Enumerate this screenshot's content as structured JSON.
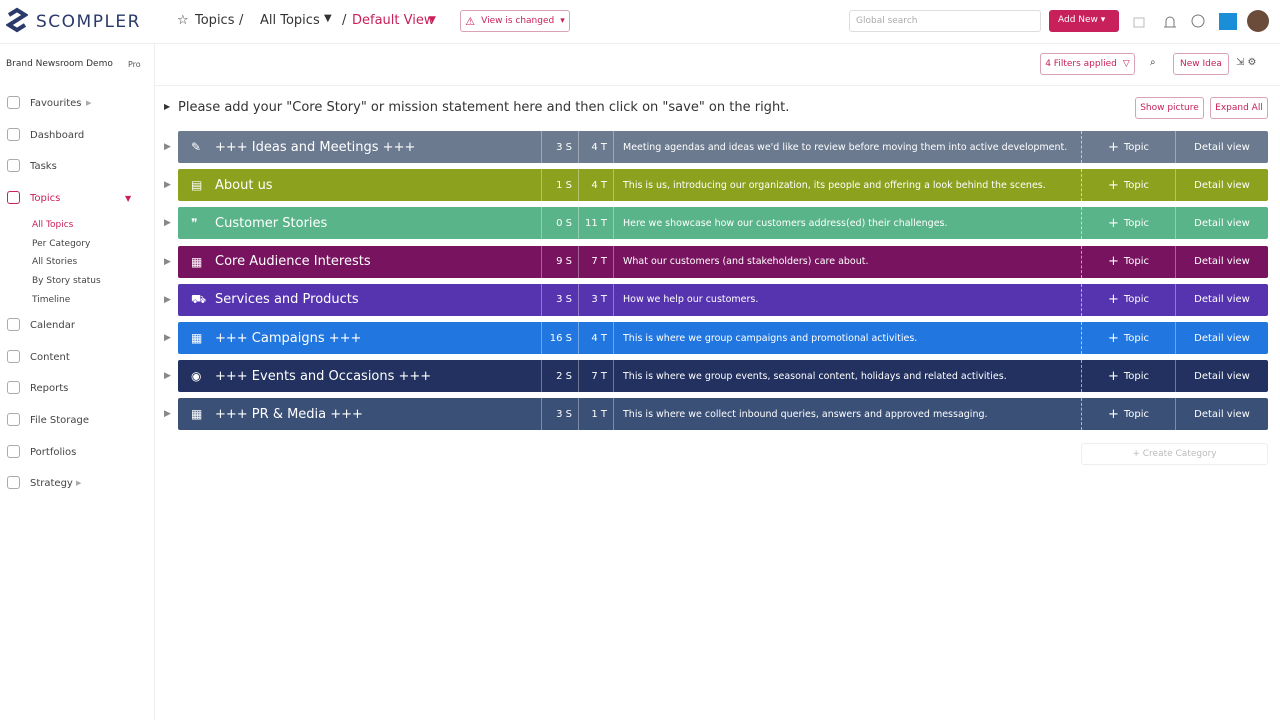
{
  "header": {
    "logo": "SCOMPLER",
    "breadcrumb": [
      "Topics",
      "All Topics",
      "Default View"
    ],
    "view_changed": "View is changed",
    "search_placeholder": "Global search",
    "add_new": "Add New"
  },
  "sidebar": {
    "workspace": "Brand Newsroom Demo",
    "plan": "Pro",
    "nav": [
      {
        "label": "Favourites"
      },
      {
        "label": "Dashboard"
      },
      {
        "label": "Tasks"
      },
      {
        "label": "Topics",
        "active": true,
        "sub": [
          "All Topics",
          "Per Category",
          "All Stories",
          "By Story status",
          "Timeline"
        ]
      },
      {
        "label": "Calendar"
      },
      {
        "label": "Content"
      },
      {
        "label": "Reports"
      },
      {
        "label": "File Storage"
      },
      {
        "label": "Portfolios"
      },
      {
        "label": "Strategy"
      }
    ]
  },
  "toolbar": {
    "filters": "4 Filters applied",
    "new_idea": "New Idea"
  },
  "core_story": "Please add your \"Core Story\" or mission statement here and then click on \"save\" on the right.",
  "show_picture": "Show picture",
  "expand_all": "Expand All",
  "categories": [
    {
      "name": "+++ Ideas and Meetings +++",
      "stories": "3 S",
      "topics": "4 T",
      "description": "Meeting agendas and ideas we'd like to review before moving them into active development.",
      "color": "#6b7a8f"
    },
    {
      "name": "About us",
      "stories": "1 S",
      "topics": "4 T",
      "description": "This is us, introducing our organization, its people and offering a look behind the scenes.",
      "color": "#8ca11d"
    },
    {
      "name": "Customer Stories",
      "stories": "0 S",
      "topics": "11 T",
      "description": "Here we showcase how our customers address(ed) their challenges.",
      "color": "#5ab489"
    },
    {
      "name": "Core Audience Interests",
      "stories": "9 S",
      "topics": "7 T",
      "description": "What our customers (and stakeholders) care about.",
      "color": "#78135f"
    },
    {
      "name": "Services and Products",
      "stories": "3 S",
      "topics": "3 T",
      "description": "How we help our customers.",
      "color": "#5634b0"
    },
    {
      "name": "+++ Campaigns +++",
      "stories": "16 S",
      "topics": "4 T",
      "description": "This is where we group campaigns and promotional activities.",
      "color": "#2176df"
    },
    {
      "name": "+++ Events and Occasions +++",
      "stories": "2 S",
      "topics": "7 T",
      "description": "This is where we group events, seasonal content, holidays and related activities.",
      "color": "#22315f"
    },
    {
      "name": "+++ PR & Media +++",
      "stories": "3 S",
      "topics": "1 T",
      "description": "This is where we collect inbound queries, answers and approved messaging.",
      "color": "#3a5077"
    }
  ],
  "topic_button": "Topic",
  "detail_view": "Detail view",
  "create_category": "Create Category"
}
